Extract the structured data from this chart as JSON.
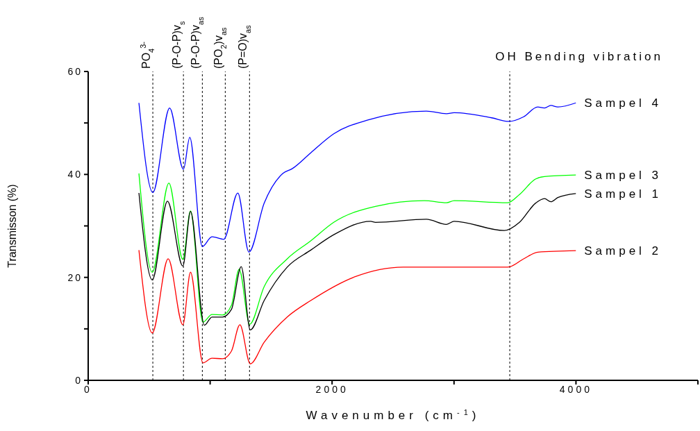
{
  "chart_data": {
    "type": "line",
    "xlabel": "Wavenumber (cm$^{-1}$)",
    "ylabel": "Transmisson (%)",
    "xlim": [
      0,
      5000
    ],
    "xticks": [
      0,
      {
        "value": 1000,
        "label": null
      },
      2000,
      {
        "value": 3000,
        "label": null
      },
      4000,
      {
        "value": 5000,
        "label": null
      }
    ],
    "ylim": [
      0,
      60
    ],
    "yticks": [
      0,
      {
        "value": 10,
        "label": null
      },
      20,
      {
        "value": 30,
        "label": null
      },
      40,
      {
        "value": 50,
        "label": null
      },
      60
    ],
    "ref_lines": [
      {
        "axis": "x",
        "value": 530,
        "label": "PO$_{4}$$^{3-}$",
        "color": "#000000",
        "line_style": "dashed"
      },
      {
        "axis": "x",
        "value": 781,
        "label": "(P-O-P)v$_{s}$",
        "color": "#000000",
        "line_style": "dashed"
      },
      {
        "axis": "x",
        "value": 936,
        "label": "(P-O-P)v$_{as}$",
        "color": "#000000",
        "line_style": "dashed"
      },
      {
        "axis": "x",
        "value": 1124,
        "label": "(PO$_{2}$)v$_{as}$",
        "color": "#000000",
        "line_style": "dashed"
      },
      {
        "axis": "x",
        "value": 1323,
        "label": "(P=O)v$_{as}$",
        "color": "#000000",
        "line_style": "dashed"
      },
      {
        "axis": "x",
        "value": 3457,
        "label": "OH Bending vibration",
        "color": "#000000",
        "line_style": "dashed"
      }
    ],
    "series": [
      {
        "name": "Sampel 4",
        "color": "#0000ff",
        "x": [
          416,
          530,
          668,
          781,
          833,
          936,
          1015,
          1112,
          1227,
          1318,
          1443,
          1597,
          1672,
          1825,
          2014,
          2299,
          2773,
          2938,
          3001,
          3309,
          3451,
          3571,
          3686,
          3742,
          3794,
          3851,
          3999
        ],
        "values": [
          53.9,
          36.5,
          52.9,
          41.0,
          47.2,
          26.0,
          27.9,
          27.4,
          36.4,
          24.9,
          34.4,
          40.2,
          41.1,
          44.2,
          47.9,
          50.6,
          52.3,
          51.8,
          52.0,
          51.0,
          50.3,
          51.2,
          53.1,
          52.9,
          53.4,
          53.1,
          53.9
        ]
      },
      {
        "name": "Sampel 3",
        "color": "#00ff00",
        "x": [
          416,
          525,
          662,
          776,
          839,
          941,
          1015,
          1101,
          1175,
          1238,
          1324,
          1443,
          1632,
          1825,
          2014,
          2356,
          2756,
          2938,
          3001,
          3440,
          3537,
          3668,
          3742,
          3999
        ],
        "values": [
          40.2,
          21.0,
          38.3,
          23.5,
          32.9,
          11.3,
          12.8,
          12.7,
          14.6,
          21.6,
          10.9,
          18.2,
          23.6,
          27.1,
          30.7,
          33.8,
          34.9,
          34.5,
          34.9,
          34.5,
          36.1,
          39.1,
          39.6,
          39.9
        ]
      },
      {
        "name": "Sampel 1",
        "color": "#000000",
        "x": [
          416,
          525,
          650,
          776,
          839,
          953,
          1015,
          1101,
          1175,
          1255,
          1329,
          1443,
          1632,
          1825,
          2014,
          2316,
          2356,
          2773,
          2938,
          3001,
          3412,
          3537,
          3668,
          3742,
          3794,
          3851,
          3999
        ],
        "values": [
          36.4,
          19.5,
          34.8,
          22.2,
          32.8,
          10.7,
          12.3,
          12.3,
          13.8,
          22.1,
          9.8,
          15.5,
          22.0,
          25.3,
          28.3,
          30.9,
          30.7,
          31.3,
          30.3,
          30.9,
          29.1,
          30.7,
          34.4,
          35.3,
          34.7,
          35.5,
          36.3
        ]
      },
      {
        "name": "Sampel 2",
        "color": "#ff0000",
        "x": [
          416,
          525,
          656,
          776,
          839,
          941,
          1015,
          1101,
          1175,
          1244,
          1329,
          1443,
          1632,
          1825,
          2185,
          2584,
          3001,
          3440,
          3571,
          3686,
          3999
        ],
        "values": [
          25.3,
          9.2,
          23.6,
          10.8,
          21.0,
          3.4,
          4.3,
          4.2,
          5.7,
          10.8,
          3.2,
          7.4,
          12.3,
          15.5,
          20.1,
          22.0,
          22.0,
          22.0,
          23.6,
          24.9,
          25.2
        ]
      }
    ]
  }
}
